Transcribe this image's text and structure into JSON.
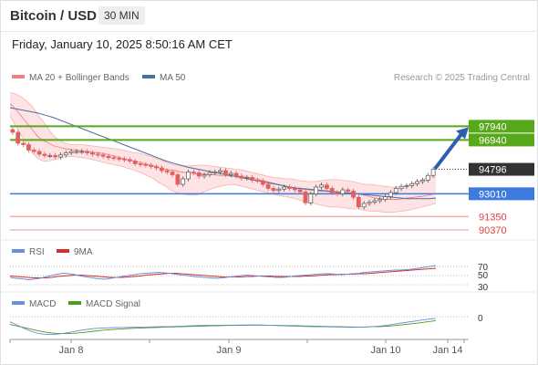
{
  "header": {
    "title": "Bitcoin / USD",
    "timeframe": "30 MIN",
    "datetime": "Friday, January 10, 2025 8:50:16 AM CET"
  },
  "legend": {
    "bb_label": "MA 20 + Bollinger Bands",
    "ma50_label": "MA 50",
    "credit": "Research © 2025 Trading Central",
    "rsi_label": "RSI",
    "rsi_ma_label": "9MA",
    "macd_label": "MACD",
    "macd_signal_label": "MACD Signal"
  },
  "colors": {
    "bb": "#f08080",
    "bb_fill": "#fde3e3",
    "ma50": "#4a6fa5",
    "green": "#58a81c",
    "blue": "#3d7be0",
    "red": "#f2a0a0",
    "candle_up": "#555555",
    "candle_down": "#e06060",
    "price": "#333333",
    "rsi": "#6a8fd8",
    "rsi_ma": "#d03030",
    "macd": "#6a8fd8",
    "macd_signal": "#4a9d1a"
  },
  "chart_data": {
    "type": "candlestick",
    "x_ticks": [
      "Jan 8",
      "Jan 9",
      "Jan 10",
      "Jan 14"
    ],
    "y_range": [
      89500,
      100500
    ],
    "levels": [
      {
        "value": 97940,
        "label": "97940",
        "kind": "resistance"
      },
      {
        "value": 96940,
        "label": "96940",
        "kind": "resistance"
      },
      {
        "value": 94796,
        "label": "94796",
        "kind": "last-price"
      },
      {
        "value": 93010,
        "label": "93010",
        "kind": "support"
      },
      {
        "value": 91350,
        "label": "91350",
        "kind": "support"
      },
      {
        "value": 90370,
        "label": "90370",
        "kind": "support"
      }
    ],
    "close": [
      97500,
      96700,
      96600,
      96200,
      96100,
      95900,
      95800,
      95800,
      95700,
      95850,
      96000,
      96100,
      96100,
      96100,
      96000,
      95900,
      95850,
      95750,
      95650,
      95600,
      95550,
      95500,
      95400,
      95200,
      95150,
      95100,
      95000,
      94900,
      94700,
      94600,
      94400,
      93700,
      94100,
      94600,
      94550,
      94300,
      94400,
      94550,
      94600,
      94700,
      94400,
      94500,
      94300,
      94150,
      94200,
      94000,
      93950,
      93700,
      93400,
      93250,
      93350,
      93500,
      93400,
      93300,
      93150,
      92350,
      93000,
      93500,
      93650,
      93400,
      93100,
      93000,
      93300,
      93200,
      92750,
      92050,
      92300,
      92400,
      92500,
      92600,
      92800,
      93100,
      93400,
      93550,
      93600,
      93750,
      93900,
      94000,
      94350,
      94796
    ],
    "ma20": [
      99600,
      99200,
      98700,
      98200,
      97700,
      97200,
      96900,
      96700,
      96500,
      96400,
      96300,
      96250,
      96200,
      96150,
      96100,
      96050,
      96000,
      95950,
      95850,
      95750,
      95650,
      95550,
      95450,
      95350,
      95250,
      95150,
      95050,
      94900,
      94800,
      94750,
      94700,
      94600,
      94550,
      94500,
      94450,
      94450,
      94400,
      94400,
      94350,
      94350,
      94300,
      94300,
      94250,
      94200,
      94150,
      94050,
      93950,
      93850,
      93750,
      93650,
      93550,
      93450,
      93400,
      93350,
      93300,
      93250,
      93200,
      93200,
      93150,
      93150,
      93100,
      93100,
      93050,
      93000,
      92900,
      92800,
      92700,
      92650,
      92600,
      92600,
      92600,
      92650,
      92700,
      92750,
      92800,
      92850,
      92950,
      93050
    ],
    "bb_upper": [
      100400,
      100300,
      100100,
      99800,
      99400,
      98800,
      98300,
      97700,
      97200,
      96900,
      96700,
      96600,
      96600,
      96600,
      96550,
      96500,
      96450,
      96400,
      96350,
      96300,
      96250,
      96150,
      96050,
      96000,
      95900,
      95800,
      95650,
      95500,
      95350,
      95200,
      95100,
      95100,
      95050,
      95050,
      95100,
      95100,
      95050,
      95000,
      94950,
      94900,
      94850,
      94800,
      94750,
      94650,
      94550,
      94450,
      94350,
      94250,
      94200,
      94150,
      94100,
      94100,
      94000,
      93950,
      93900,
      93900,
      93950,
      94000,
      94050,
      94050,
      94000,
      93950,
      93900,
      93800,
      93700,
      93700,
      93650,
      93600,
      93550,
      93500,
      93500,
      93550,
      93650,
      93800,
      93950,
      94100,
      94300,
      94550
    ],
    "bb_lower": [
      98700,
      98000,
      97300,
      96600,
      96000,
      95600,
      95400,
      95400,
      95500,
      95600,
      95700,
      95750,
      95700,
      95650,
      95600,
      95500,
      95400,
      95300,
      95200,
      95100,
      95050,
      94900,
      94800,
      94650,
      94500,
      94300,
      94100,
      93800,
      93600,
      93300,
      93100,
      93000,
      92950,
      92900,
      92950,
      93150,
      93300,
      93450,
      93550,
      93650,
      93700,
      93650,
      93550,
      93450,
      93350,
      93250,
      93150,
      93050,
      92950,
      92850,
      92800,
      92700,
      92600,
      92450,
      92350,
      92300,
      92200,
      92100,
      92050,
      92050,
      92000,
      91950,
      91900,
      91900,
      91800,
      91750,
      91750,
      91700,
      91650,
      91650,
      91700,
      91750,
      91800,
      91900,
      92000,
      92100,
      92200,
      92300
    ],
    "ma50": [
      99300,
      99200,
      99100,
      99000,
      98900,
      98750,
      98600,
      98400,
      98200,
      98000,
      97800,
      97600,
      97400,
      97200,
      97000,
      96800,
      96600,
      96400,
      96200,
      96000,
      95800,
      95600,
      95400,
      95250,
      95100,
      94950,
      94850,
      94750,
      94650,
      94550,
      94450,
      94350,
      94250,
      94150,
      94050,
      93950,
      93850,
      93750,
      93650,
      93550,
      93450,
      93400,
      93350,
      93300,
      93250,
      93200,
      93150,
      93100,
      93050,
      93000,
      92950,
      92900,
      92850,
      92800,
      92750,
      92700,
      92650,
      92650,
      92650,
      92650,
      92700
    ],
    "rsi": [
      46,
      44,
      43,
      41,
      42,
      44,
      47,
      50,
      53,
      55,
      54,
      52,
      49,
      47,
      45,
      43,
      42,
      44,
      46,
      48,
      50,
      52,
      54,
      55,
      56,
      57,
      56,
      55,
      53,
      51,
      50,
      48,
      47,
      46,
      45,
      44,
      45,
      47,
      48,
      50,
      51,
      50,
      49,
      48,
      47,
      46,
      46,
      47,
      49,
      50,
      51,
      52,
      53,
      54,
      54,
      53,
      52,
      53,
      54,
      55,
      57,
      58,
      59,
      60,
      61,
      62,
      62,
      63,
      64,
      66,
      68,
      70,
      72
    ],
    "rsi_ma": [
      49,
      48,
      47,
      46,
      45,
      45,
      45,
      46,
      48,
      49,
      50,
      51,
      51,
      50,
      49,
      48,
      47,
      46,
      46,
      46,
      47,
      48,
      49,
      51,
      52,
      53,
      54,
      55,
      55,
      54,
      53,
      52,
      51,
      50,
      49,
      48,
      47,
      47,
      47,
      47,
      48,
      48,
      49,
      49,
      49,
      48,
      48,
      48,
      48,
      48,
      49,
      49,
      50,
      51,
      52,
      52,
      53,
      53,
      53,
      54,
      54,
      55,
      56,
      57,
      58,
      59,
      60,
      61,
      62,
      63,
      64,
      65,
      66
    ],
    "rsi_levels": [
      "70",
      "50",
      "30"
    ],
    "macd": [
      -200,
      -320,
      -450,
      -560,
      -640,
      -680,
      -690,
      -670,
      -630,
      -580,
      -530,
      -490,
      -460,
      -440,
      -430,
      -420,
      -415,
      -410,
      -405,
      -400,
      -395,
      -390,
      -385,
      -380,
      -370,
      -360,
      -350,
      -340,
      -335,
      -330,
      -328,
      -326,
      -324,
      -322,
      -320,
      -318,
      -320,
      -330,
      -340,
      -350,
      -360,
      -370,
      -375,
      -380,
      -385,
      -390,
      -395,
      -400,
      -405,
      -410,
      -405,
      -395,
      -380,
      -360,
      -330,
      -290,
      -250,
      -210,
      -170,
      -130,
      -95,
      -65
    ],
    "macd_signal": [
      -300,
      -360,
      -420,
      -480,
      -540,
      -590,
      -630,
      -650,
      -650,
      -640,
      -620,
      -590,
      -560,
      -530,
      -505,
      -485,
      -470,
      -455,
      -445,
      -435,
      -425,
      -415,
      -405,
      -398,
      -390,
      -382,
      -375,
      -368,
      -360,
      -352,
      -346,
      -340,
      -336,
      -332,
      -330,
      -328,
      -328,
      -330,
      -334,
      -338,
      -344,
      -350,
      -356,
      -362,
      -368,
      -374,
      -380,
      -386,
      -392,
      -396,
      -398,
      -396,
      -390,
      -380,
      -366,
      -346,
      -320,
      -290,
      -260,
      -225,
      -190,
      -155
    ],
    "macd_level": "0"
  }
}
